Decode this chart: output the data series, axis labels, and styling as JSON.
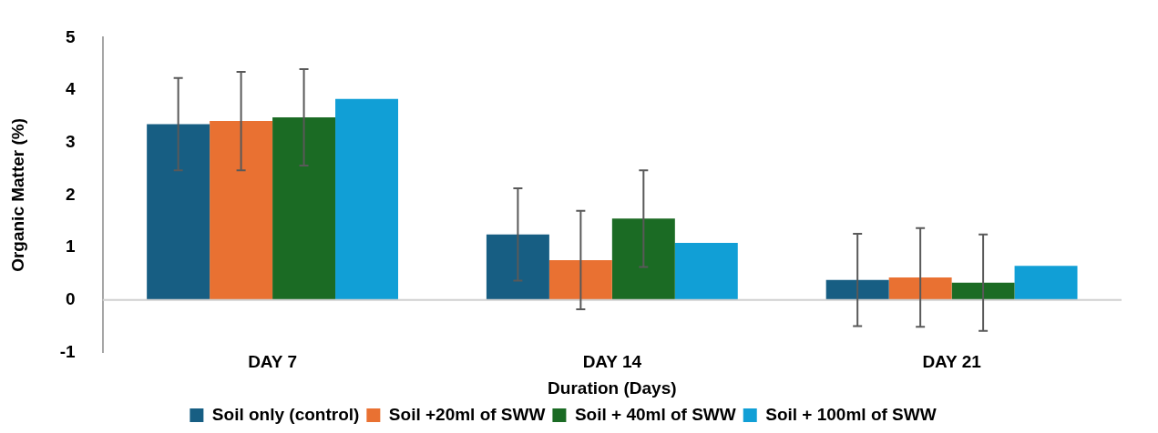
{
  "chart_data": {
    "type": "bar",
    "xlabel": "Duration (Days)",
    "ylabel": "Organic Matter (%)",
    "categories": [
      "DAY 7",
      "DAY 14",
      "DAY 21"
    ],
    "series": [
      {
        "name": "Soil only (control)",
        "color": "#175e83",
        "values": [
          3.35,
          1.25,
          0.38
        ],
        "errors": [
          0.88,
          0.88,
          0.88
        ]
      },
      {
        "name": "Soil +20ml of SWW",
        "color": "#e97132",
        "values": [
          3.41,
          0.76,
          0.43
        ],
        "errors": [
          0.94,
          0.94,
          0.94
        ]
      },
      {
        "name": "Soil + 40ml of SWW",
        "color": "#1b6b24",
        "values": [
          3.48,
          1.55,
          0.33
        ],
        "errors": [
          0.92,
          0.92,
          0.92
        ]
      },
      {
        "name": "Soil + 100ml of SWW",
        "color": "#119fd6",
        "values": [
          3.83,
          1.09,
          0.65
        ]
      }
    ],
    "ref_lines": [
      {
        "axis": "y",
        "value": 0,
        "color": "#d0d0d0"
      }
    ],
    "ylim": [
      -1,
      5
    ],
    "yticks": [
      -1,
      0,
      1,
      2,
      3,
      4,
      5
    ],
    "grid": false,
    "legend": "bottom"
  }
}
